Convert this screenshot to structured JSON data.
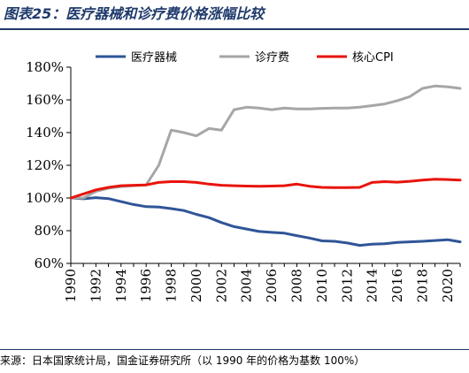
{
  "figure": {
    "title": "图表25：医疗器械和诊疗费价格涨幅比较",
    "source": "来源：日本国家统计局，国金证券研究所（以 1990 年的价格为基数 100%）"
  },
  "chart_data": {
    "type": "line",
    "title": "",
    "xlabel": "",
    "ylabel": "",
    "x": [
      1990,
      1991,
      1992,
      1993,
      1994,
      1995,
      1996,
      1997,
      1998,
      1999,
      2000,
      2001,
      2002,
      2003,
      2004,
      2005,
      2006,
      2007,
      2008,
      2009,
      2010,
      2011,
      2012,
      2013,
      2014,
      2015,
      2016,
      2017,
      2018,
      2019,
      2020,
      2021
    ],
    "xticks": [
      "1990",
      "1992",
      "1994",
      "1996",
      "1998",
      "2000",
      "2002",
      "2004",
      "2006",
      "2008",
      "2010",
      "2012",
      "2014",
      "2016",
      "2018",
      "2020"
    ],
    "xlim": [
      1990,
      2021
    ],
    "ylim": [
      60,
      180
    ],
    "yticks": [
      "60%",
      "80%",
      "100%",
      "120%",
      "140%",
      "160%",
      "180%"
    ],
    "yunit": "%",
    "grid": false,
    "legend_position": "top",
    "series": [
      {
        "name": "医疗器械",
        "color": "#2f5597",
        "values": [
          100,
          99.5,
          100.2,
          99.6,
          97.8,
          96,
          94.7,
          94.5,
          93.5,
          92.3,
          90,
          88,
          85,
          82.5,
          81,
          79.5,
          79,
          78.5,
          77,
          75.5,
          73.8,
          73.5,
          72.5,
          71,
          71.8,
          72,
          72.8,
          73.2,
          73.5,
          74,
          74.5,
          73.2
        ]
      },
      {
        "name": "诊疗费",
        "color": "#a6a6a6",
        "values": [
          100,
          100,
          104,
          106,
          107,
          107.5,
          108,
          120,
          141.5,
          140,
          138,
          142.5,
          141.5,
          154,
          155.5,
          155,
          154,
          155,
          154.5,
          154.5,
          154.8,
          155,
          155,
          155.5,
          156.5,
          157.5,
          159.5,
          162,
          167,
          168.5,
          168,
          167
        ]
      },
      {
        "name": "核心CPI",
        "color": "#e8140c",
        "values": [
          100,
          102.5,
          105,
          106.5,
          107.5,
          107.8,
          108,
          109.5,
          110,
          110,
          109.5,
          108.5,
          107.8,
          107.5,
          107.3,
          107.2,
          107.3,
          107.5,
          108.5,
          107.2,
          106.5,
          106.3,
          106.3,
          106.5,
          109.5,
          110,
          109.7,
          110.2,
          111,
          111.5,
          111.3,
          111
        ]
      }
    ]
  }
}
